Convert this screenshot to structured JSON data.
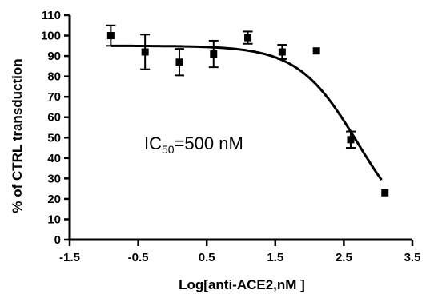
{
  "chart_data": {
    "type": "scatter",
    "xlabel": "Log[anti-ACE2,nM ]",
    "ylabel": "% of CTRL transduction",
    "xlim": [
      -1.5,
      3.5
    ],
    "ylim": [
      0,
      110
    ],
    "xticks": [
      -1.5,
      -0.5,
      0.5,
      1.5,
      2.5,
      3.5
    ],
    "xtick_labels": [
      "-1.5",
      "-0.5",
      "0.5",
      "1.5",
      "2.5",
      "3.5"
    ],
    "yticks": [
      0,
      10,
      20,
      30,
      40,
      50,
      60,
      70,
      80,
      90,
      100,
      110
    ],
    "ytick_labels": [
      "0",
      "10",
      "20",
      "30",
      "40",
      "50",
      "60",
      "70",
      "80",
      "90",
      "100",
      "110"
    ],
    "grid": false,
    "annotation": {
      "main": "IC",
      "sub": "50",
      "tail": "=500 nM"
    },
    "series": [
      {
        "marker": "square",
        "color": "#000000",
        "points": [
          {
            "x": -0.9,
            "y": 100,
            "err": 5
          },
          {
            "x": -0.4,
            "y": 92,
            "err": 8.5
          },
          {
            "x": 0.1,
            "y": 87,
            "err": 6.5
          },
          {
            "x": 0.6,
            "y": 91,
            "err": 6.5
          },
          {
            "x": 1.1,
            "y": 99,
            "err": 3
          },
          {
            "x": 1.6,
            "y": 92,
            "err": 3.5
          },
          {
            "x": 2.1,
            "y": 92.5,
            "err": 0
          },
          {
            "x": 2.6,
            "y": 49,
            "err": 4
          },
          {
            "x": 3.1,
            "y": 23,
            "err": 0
          }
        ]
      }
    ],
    "fit_curve": {
      "model": "sigmoid",
      "top": 95,
      "bottom": 0,
      "log_ic50": 2.7,
      "hill_slope": -1.0,
      "x_range": [
        -0.9,
        3.05
      ]
    }
  }
}
